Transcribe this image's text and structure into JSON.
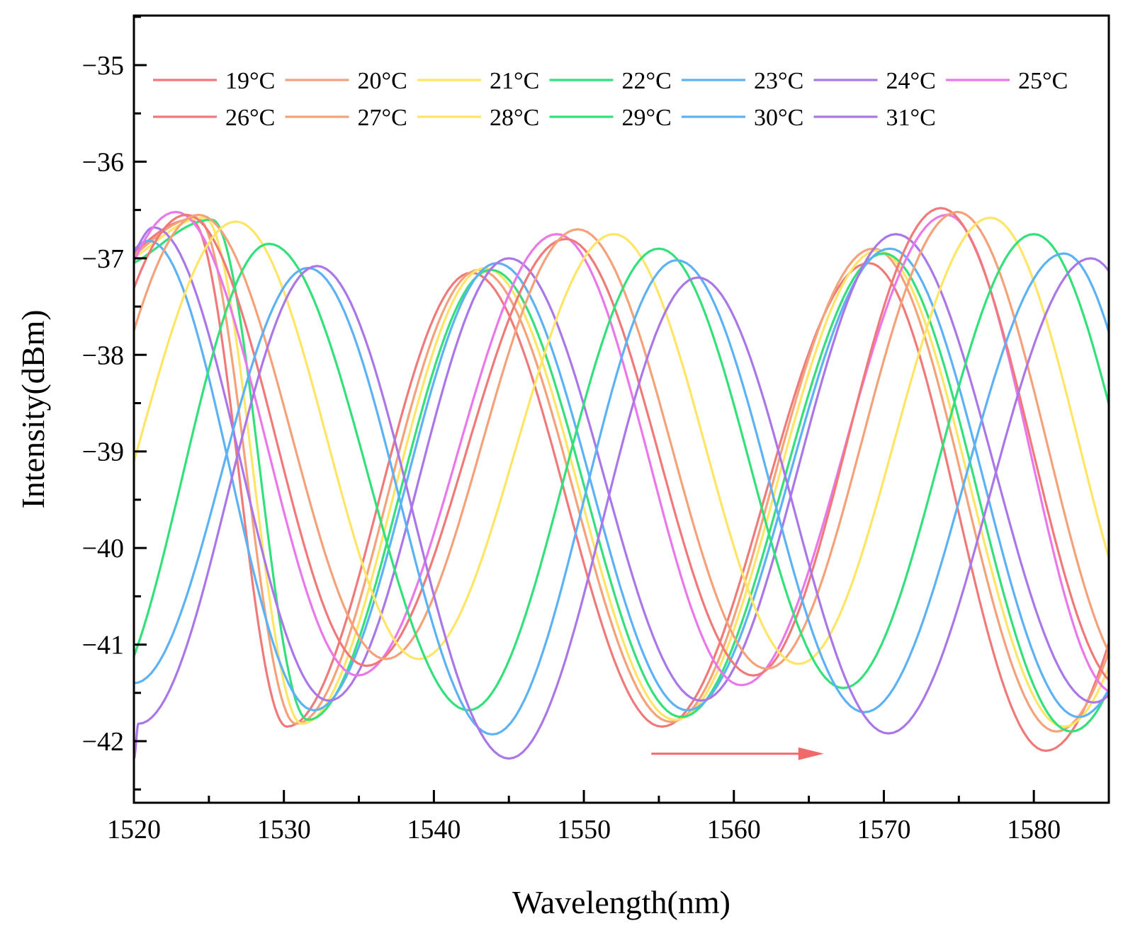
{
  "chart_data": {
    "type": "line",
    "title": "",
    "xlabel": "Wavelength(nm)",
    "ylabel": "Intensity(dBm)",
    "xlim": [
      1520,
      1585
    ],
    "ylim": [
      -42.5,
      -34.8
    ],
    "x_ticks": [
      1520,
      1530,
      1540,
      1550,
      1560,
      1570,
      1580
    ],
    "x_tick_labels": [
      "1520",
      "1530",
      "1540",
      "1550",
      "1560",
      "1570",
      "1580"
    ],
    "y_ticks": [
      -35,
      -36,
      -37,
      -38,
      -39,
      -40,
      -41,
      -42
    ],
    "y_tick_labels": [
      "−35",
      "−36",
      "−37",
      "−38",
      "−39",
      "−40",
      "−41",
      "−42"
    ],
    "grid": false,
    "legend_position": "top",
    "annotation": {
      "type": "arrow",
      "color": "#f06a6a",
      "from": [
        1554.5,
        -42.13
      ],
      "to": [
        1566,
        -42.13
      ],
      "meaning": "red-shift with increasing temperature"
    },
    "series": [
      {
        "name": "19°C",
        "color": "#f07a7a",
        "dips": [
          {
            "x": 1530.2,
            "y": -41.85
          },
          {
            "x": 1555.2,
            "y": -41.85
          },
          {
            "x": 1580.8,
            "y": -42.1
          }
        ],
        "peaks": [
          {
            "x": 1523.8,
            "y": -36.6
          },
          {
            "x": 1542.5,
            "y": -37.15
          },
          {
            "x": 1569.0,
            "y": -37.05
          }
        ]
      },
      {
        "name": "20°C",
        "color": "#f5a27a",
        "dips": [
          {
            "x": 1530.8,
            "y": -41.82
          },
          {
            "x": 1555.8,
            "y": -41.8
          },
          {
            "x": 1581.5,
            "y": -41.9
          }
        ],
        "peaks": [
          {
            "x": 1524.2,
            "y": -36.58
          },
          {
            "x": 1543.0,
            "y": -37.12
          },
          {
            "x": 1569.3,
            "y": -36.9
          }
        ]
      },
      {
        "name": "21°C",
        "color": "#ffe566",
        "dips": [
          {
            "x": 1531.2,
            "y": -41.82
          },
          {
            "x": 1556.1,
            "y": -41.78
          },
          {
            "x": 1582.0,
            "y": -41.85
          }
        ],
        "peaks": [
          {
            "x": 1524.7,
            "y": -36.58
          },
          {
            "x": 1543.4,
            "y": -37.1
          },
          {
            "x": 1569.6,
            "y": -36.92
          }
        ]
      },
      {
        "name": "22°C",
        "color": "#33e07a",
        "dips": [
          {
            "x": 1531.6,
            "y": -41.78
          },
          {
            "x": 1556.5,
            "y": -41.75
          },
          {
            "x": 1582.5,
            "y": -41.9
          }
        ],
        "peaks": [
          {
            "x": 1525.2,
            "y": -36.6
          },
          {
            "x": 1543.8,
            "y": -37.12
          },
          {
            "x": 1570.0,
            "y": -36.95
          }
        ]
      },
      {
        "name": "23°C",
        "color": "#5cb2f5",
        "dips": [
          {
            "x": 1532.0,
            "y": -41.68
          },
          {
            "x": 1556.9,
            "y": -41.68
          },
          {
            "x": 1583.0,
            "y": -41.75
          }
        ],
        "peaks": [
          {
            "x": 1521.0,
            "y": -36.82
          },
          {
            "x": 1544.2,
            "y": -37.05
          },
          {
            "x": 1570.4,
            "y": -36.9
          }
        ]
      },
      {
        "name": "24°C",
        "color": "#aa77e8",
        "dips": [
          {
            "x": 1533.0,
            "y": -41.58
          },
          {
            "x": 1557.8,
            "y": -41.58
          },
          {
            "x": 1584.0,
            "y": -41.6
          }
        ],
        "peaks": [
          {
            "x": 1521.3,
            "y": -36.68
          },
          {
            "x": 1545.0,
            "y": -37.0
          },
          {
            "x": 1570.8,
            "y": -36.75
          }
        ]
      },
      {
        "name": "25°C",
        "color": "#ea78ea",
        "dips": [
          {
            "x": 1534.9,
            "y": -41.32
          },
          {
            "x": 1560.5,
            "y": -41.42
          },
          {
            "x": 1585.4,
            "y": -41.5
          }
        ],
        "peaks": [
          {
            "x": 1522.8,
            "y": -36.52
          },
          {
            "x": 1548.2,
            "y": -36.75
          },
          {
            "x": 1574.2,
            "y": -36.55
          }
        ]
      },
      {
        "name": "26°C",
        "color": "#f07a7a",
        "dips": [
          {
            "x": 1535.5,
            "y": -41.22
          },
          {
            "x": 1561.3,
            "y": -41.32
          },
          {
            "x": 1586.0,
            "y": -41.45
          }
        ],
        "peaks": [
          {
            "x": 1523.5,
            "y": -36.55
          },
          {
            "x": 1548.8,
            "y": -36.8
          },
          {
            "x": 1573.8,
            "y": -36.48
          }
        ]
      },
      {
        "name": "27°C",
        "color": "#f5a27a",
        "dips": [
          {
            "x": 1536.8,
            "y": -41.15
          },
          {
            "x": 1562.2,
            "y": -41.25
          },
          {
            "x": 1587.0,
            "y": -41.4
          }
        ],
        "peaks": [
          {
            "x": 1524.3,
            "y": -36.55
          },
          {
            "x": 1549.6,
            "y": -36.7
          },
          {
            "x": 1574.9,
            "y": -36.52
          }
        ]
      },
      {
        "name": "28°C",
        "color": "#ffe566",
        "dips": [
          {
            "x": 1539.0,
            "y": -41.15
          },
          {
            "x": 1564.3,
            "y": -41.2
          },
          {
            "x": 1589.0,
            "y": -41.3
          }
        ],
        "peaks": [
          {
            "x": 1526.8,
            "y": -36.62
          },
          {
            "x": 1552.0,
            "y": -36.75
          },
          {
            "x": 1577.1,
            "y": -36.58
          }
        ]
      },
      {
        "name": "29°C",
        "color": "#33e07a",
        "dips": [
          {
            "x": 1542.3,
            "y": -41.68
          },
          {
            "x": 1567.3,
            "y": -41.45
          },
          {
            "x": 1592.0,
            "y": -41.5
          }
        ],
        "peaks": [
          {
            "x": 1529.0,
            "y": -36.85
          },
          {
            "x": 1555.0,
            "y": -36.9
          },
          {
            "x": 1580.0,
            "y": -36.75
          }
        ]
      },
      {
        "name": "30°C",
        "color": "#5cb2f5",
        "dips": [
          {
            "x": 1520.0,
            "y": -41.4
          },
          {
            "x": 1543.9,
            "y": -41.93
          },
          {
            "x": 1568.7,
            "y": -41.7
          }
        ],
        "peaks": [
          {
            "x": 1531.6,
            "y": -37.1
          },
          {
            "x": 1556.2,
            "y": -37.02
          },
          {
            "x": 1582.0,
            "y": -36.95
          }
        ]
      },
      {
        "name": "31°C",
        "color": "#aa77e8",
        "dips": [
          {
            "x": 1520.3,
            "y": -41.82
          },
          {
            "x": 1545.0,
            "y": -42.18
          },
          {
            "x": 1570.3,
            "y": -41.92
          }
        ],
        "peaks": [
          {
            "x": 1532.2,
            "y": -37.08
          },
          {
            "x": 1557.6,
            "y": -37.2
          },
          {
            "x": 1583.8,
            "y": -37.0
          }
        ]
      }
    ]
  }
}
